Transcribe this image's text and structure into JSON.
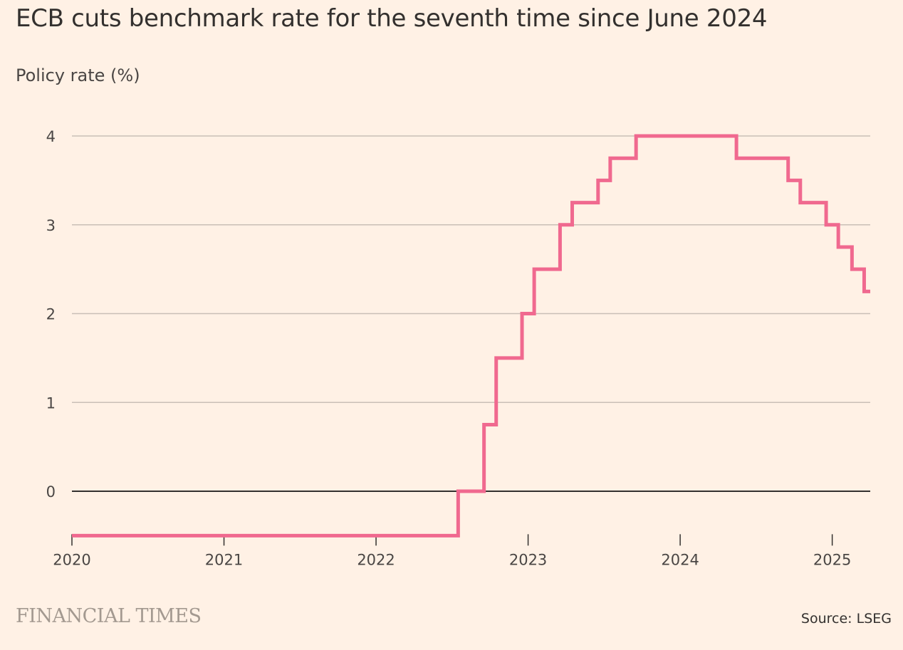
{
  "header": {
    "title": "ECB cuts benchmark rate for the seventh time since June 2024",
    "subtitle": "Policy rate (%)"
  },
  "footer": {
    "brand": "FINANCIAL TIMES",
    "source": "Source: LSEG"
  },
  "colors": {
    "background": "#fff1e5",
    "line": "#f0698f",
    "grid": "#c9bfb6",
    "zero_line": "#33302e",
    "text": "#33302e"
  },
  "chart_data": {
    "type": "line",
    "step": true,
    "title": "ECB cuts benchmark rate for the seventh time since June 2024",
    "ylabel": "Policy rate (%)",
    "xlabel": "",
    "xlim": [
      2020.0,
      2025.25
    ],
    "ylim": [
      -0.5,
      4
    ],
    "y_ticks": [
      0,
      1,
      2,
      3,
      4
    ],
    "y_tick_labels": [
      "0",
      "1",
      "2",
      "3",
      "4"
    ],
    "x_ticks": [
      2020,
      2021,
      2022,
      2023,
      2024,
      2025
    ],
    "x_tick_labels": [
      "2020",
      "2021",
      "2022",
      "2023",
      "2024",
      "2025"
    ],
    "grid": true,
    "series": [
      {
        "x": [
          2020.0,
          2022.54,
          2022.71,
          2022.79,
          2022.96,
          2023.04,
          2023.21,
          2023.29,
          2023.46,
          2023.54,
          2023.71,
          2024.37,
          2024.71,
          2024.79,
          2024.96,
          2025.04,
          2025.13,
          2025.21,
          2025.25
        ],
        "y": [
          -0.5,
          0,
          0.75,
          1.5,
          2,
          2.5,
          3,
          3.25,
          3.5,
          3.75,
          4,
          3.75,
          3.5,
          3.25,
          3,
          2.75,
          2.5,
          2.25,
          2.25
        ]
      }
    ]
  }
}
